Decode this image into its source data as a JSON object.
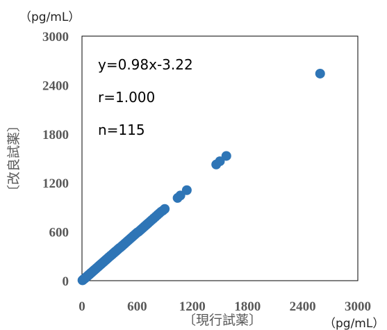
{
  "chart_data": {
    "type": "scatter",
    "title": "",
    "xlabel": "〔現行試薬〕",
    "ylabel": "〔改良試薬〕",
    "x_unit": "（pg/mL）",
    "y_unit": "（pg/mL）",
    "xlim": [
      0,
      3000
    ],
    "ylim": [
      0,
      3000
    ],
    "xticks": [
      0,
      600,
      1200,
      1800,
      2400,
      3000
    ],
    "yticks": [
      0,
      600,
      1200,
      1800,
      2400,
      3000
    ],
    "xtick_labels": [
      "0",
      "600",
      "1200",
      "1800",
      "2400",
      "3000"
    ],
    "ytick_labels": [
      "0",
      "600",
      "1200",
      "1800",
      "2400",
      "3000"
    ],
    "grid": false,
    "legend": "none",
    "marker_color": "#2E75B6",
    "annotations": [
      "y=0.98x-3.22",
      "r=1.000",
      "n=115"
    ],
    "series": [
      {
        "points": [
          [
            5,
            5
          ],
          [
            12,
            10
          ],
          [
            20,
            18
          ],
          [
            28,
            25
          ],
          [
            36,
            32
          ],
          [
            45,
            42
          ],
          [
            55,
            52
          ],
          [
            65,
            60
          ],
          [
            75,
            70
          ],
          [
            85,
            80
          ],
          [
            95,
            90
          ],
          [
            105,
            100
          ],
          [
            115,
            110
          ],
          [
            125,
            120
          ],
          [
            135,
            130
          ],
          [
            145,
            140
          ],
          [
            155,
            150
          ],
          [
            165,
            160
          ],
          [
            175,
            170
          ],
          [
            185,
            180
          ],
          [
            195,
            190
          ],
          [
            205,
            200
          ],
          [
            215,
            210
          ],
          [
            225,
            220
          ],
          [
            235,
            230
          ],
          [
            245,
            240
          ],
          [
            255,
            250
          ],
          [
            265,
            260
          ],
          [
            275,
            270
          ],
          [
            285,
            280
          ],
          [
            295,
            290
          ],
          [
            305,
            300
          ],
          [
            315,
            310
          ],
          [
            325,
            318
          ],
          [
            335,
            330
          ],
          [
            345,
            338
          ],
          [
            355,
            350
          ],
          [
            365,
            358
          ],
          [
            375,
            368
          ],
          [
            385,
            378
          ],
          [
            395,
            388
          ],
          [
            405,
            398
          ],
          [
            420,
            410
          ],
          [
            435,
            425
          ],
          [
            450,
            440
          ],
          [
            465,
            455
          ],
          [
            480,
            470
          ],
          [
            495,
            485
          ],
          [
            510,
            500
          ],
          [
            525,
            515
          ],
          [
            540,
            530
          ],
          [
            555,
            545
          ],
          [
            570,
            560
          ],
          [
            585,
            575
          ],
          [
            600,
            590
          ],
          [
            615,
            600
          ],
          [
            630,
            615
          ],
          [
            645,
            630
          ],
          [
            660,
            645
          ],
          [
            675,
            660
          ],
          [
            690,
            675
          ],
          [
            705,
            690
          ],
          [
            720,
            705
          ],
          [
            740,
            725
          ],
          [
            760,
            745
          ],
          [
            780,
            765
          ],
          [
            800,
            785
          ],
          [
            820,
            805
          ],
          [
            840,
            825
          ],
          [
            860,
            845
          ],
          [
            880,
            860
          ],
          [
            900,
            880
          ],
          [
            1040,
            1015
          ],
          [
            1070,
            1045
          ],
          [
            1140,
            1110
          ],
          [
            1460,
            1425
          ],
          [
            1500,
            1465
          ],
          [
            1570,
            1530
          ],
          [
            2590,
            2540
          ],
          [
            8,
            6
          ],
          [
            15,
            14
          ],
          [
            22,
            21
          ],
          [
            32,
            30
          ],
          [
            42,
            40
          ],
          [
            50,
            48
          ],
          [
            60,
            58
          ],
          [
            70,
            68
          ],
          [
            80,
            77
          ],
          [
            90,
            88
          ],
          [
            100,
            97
          ],
          [
            110,
            107
          ],
          [
            120,
            117
          ],
          [
            130,
            127
          ],
          [
            140,
            137
          ],
          [
            150,
            146
          ],
          [
            160,
            156
          ],
          [
            170,
            166
          ],
          [
            180,
            176
          ],
          [
            190,
            186
          ],
          [
            200,
            196
          ],
          [
            210,
            205
          ],
          [
            220,
            215
          ],
          [
            230,
            225
          ],
          [
            240,
            235
          ],
          [
            250,
            245
          ],
          [
            260,
            255
          ],
          [
            270,
            265
          ],
          [
            280,
            275
          ],
          [
            290,
            285
          ],
          [
            310,
            304
          ],
          [
            330,
            323
          ],
          [
            350,
            343
          ],
          [
            370,
            362
          ],
          [
            390,
            382
          ],
          [
            410,
            402
          ]
        ]
      }
    ]
  }
}
